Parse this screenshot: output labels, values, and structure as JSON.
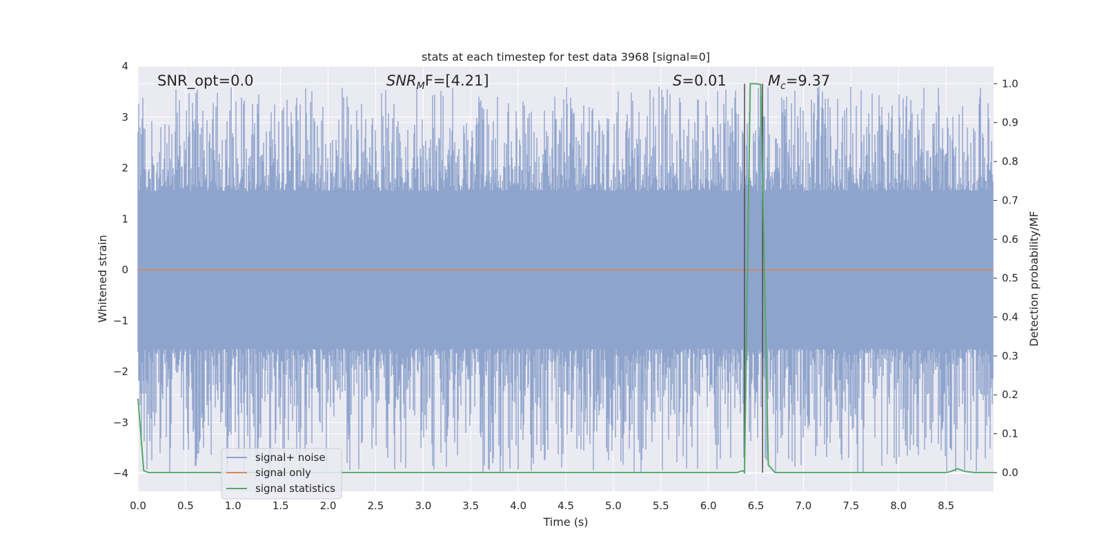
{
  "chart_data": {
    "type": "line",
    "title": "stats at each timestep for test data 3968 [signal=0]",
    "xlabel": "Time (s)",
    "ylabel": "Whitened strain",
    "y2label": "Detection probability/MF",
    "xlim": [
      0.0,
      9.0
    ],
    "ylim": [
      -4.35,
      4.0
    ],
    "y2lim": [
      -0.048,
      1.045
    ],
    "x_ticks": [
      "0.0",
      "0.5",
      "1.0",
      "1.5",
      "2.0",
      "2.5",
      "3.0",
      "3.5",
      "4.0",
      "4.5",
      "5.0",
      "5.5",
      "6.0",
      "6.5",
      "7.0",
      "7.5",
      "8.0",
      "8.5"
    ],
    "y_ticks": [
      "4",
      "3",
      "2",
      "1",
      "0",
      "−1",
      "−2",
      "−3",
      "−4"
    ],
    "y2_ticks": [
      "1.0",
      "0.9",
      "0.8",
      "0.7",
      "0.6",
      "0.5",
      "0.4",
      "0.3",
      "0.2",
      "0.1",
      "0.0"
    ],
    "grid": true,
    "legend_position": "lower-left",
    "annotations": {
      "snr_opt": "SNR_opt=0.0",
      "snr_mf_sym": "SNR",
      "snr_mf_sub": "M",
      "snr_mf_rest": "F=[4.21]",
      "s_sym": "S",
      "s_rest": "=0.01",
      "mc_sym": "M",
      "mc_sub": "c",
      "mc_rest": "=9.37"
    },
    "markers_x": [
      6.38,
      6.57
    ],
    "series": [
      {
        "name": "signal+ noise",
        "color": "#8fa4cc",
        "noise_envelope": {
          "typical_amplitude": 1.3,
          "peak_max": 3.6,
          "trough_min": -4.0
        }
      },
      {
        "name": "signal only",
        "color": "#dd8452",
        "constant": 0.0
      },
      {
        "name": "signal statistics",
        "color": "#55a868",
        "axis": "right",
        "x": [
          0.0,
          0.06,
          0.11,
          0.5,
          1.0,
          2.0,
          3.0,
          4.0,
          5.0,
          6.0,
          6.3,
          6.36,
          6.38,
          6.44,
          6.5,
          6.55,
          6.63,
          6.7,
          7.0,
          8.0,
          8.5,
          8.55,
          8.62,
          8.7,
          8.8,
          9.0
        ],
        "values": [
          0.19,
          0.005,
          0.0,
          0.0,
          0.0,
          0.0,
          0.0,
          0.0,
          0.0,
          0.0,
          0.0,
          0.005,
          0.0,
          1.0,
          1.0,
          0.998,
          0.02,
          0.0,
          0.0,
          0.0,
          0.0,
          0.003,
          0.01,
          0.003,
          0.0,
          0.0
        ]
      }
    ]
  }
}
